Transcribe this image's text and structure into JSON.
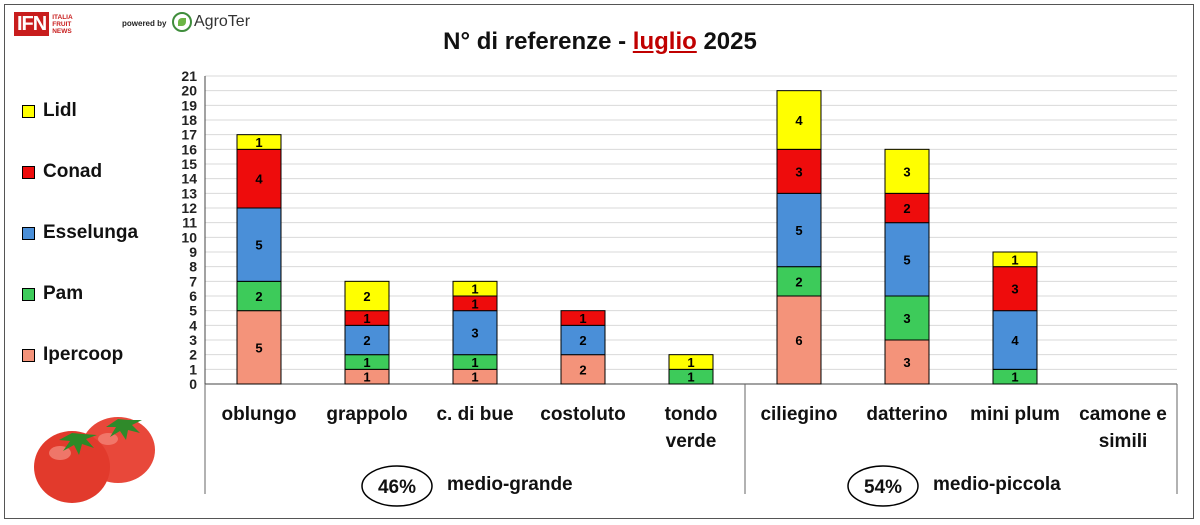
{
  "header": {
    "logo_text": "IFN",
    "logo_sub": [
      "ITALIA",
      "FRUIT",
      "NEWS"
    ],
    "powered_by": "powered by",
    "agroter": "AgroTer"
  },
  "title": {
    "prefix": "N° di referenze - ",
    "month": "luglio",
    "year": " 2025"
  },
  "chart_data": {
    "type": "bar",
    "stacked": true,
    "title": "N° di referenze - luglio 2025",
    "categories": [
      "oblungo",
      "grappolo",
      "c. di bue",
      "costoluto",
      "tondo verde",
      "ciliegino",
      "datterino",
      "mini plum",
      "camone e simili"
    ],
    "category_lines": [
      [
        "oblungo"
      ],
      [
        "grappolo"
      ],
      [
        "c. di bue"
      ],
      [
        "costoluto"
      ],
      [
        "tondo",
        "verde"
      ],
      [
        "ciliegino"
      ],
      [
        "datterino"
      ],
      [
        "mini plum"
      ],
      [
        "camone e",
        "simili"
      ]
    ],
    "series": [
      {
        "name": "Ipercoop",
        "color": "#f4937a",
        "values": [
          5,
          1,
          1,
          2,
          0,
          6,
          3,
          0,
          0
        ]
      },
      {
        "name": "Pam",
        "color": "#3dcb5a",
        "values": [
          2,
          1,
          1,
          0,
          1,
          2,
          3,
          1,
          0
        ]
      },
      {
        "name": "Esselunga",
        "color": "#4a8fd8",
        "values": [
          5,
          2,
          3,
          2,
          0,
          5,
          5,
          4,
          0
        ]
      },
      {
        "name": "Conad",
        "color": "#ee0c0c",
        "values": [
          4,
          1,
          1,
          1,
          0,
          3,
          2,
          3,
          0
        ]
      },
      {
        "name": "Lidl",
        "color": "#ffff00",
        "values": [
          1,
          2,
          1,
          0,
          1,
          4,
          3,
          1,
          0
        ]
      }
    ],
    "ylim": [
      0,
      21
    ],
    "yticks": [
      0,
      1,
      2,
      3,
      4,
      5,
      6,
      7,
      8,
      9,
      10,
      11,
      12,
      13,
      14,
      15,
      16,
      17,
      18,
      19,
      20,
      21
    ],
    "grid": true,
    "legend_position": "left",
    "groups": [
      {
        "share": "46%",
        "label": "medio-grande",
        "from": 0,
        "to": 4
      },
      {
        "share": "54%",
        "label": "medio-piccola",
        "from": 5,
        "to": 8
      }
    ]
  }
}
